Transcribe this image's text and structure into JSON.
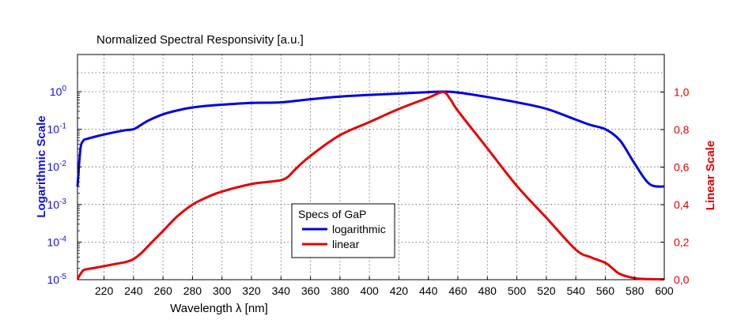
{
  "chart_data": {
    "type": "line",
    "title": "Normalized Spectral Responsivity [a.u.]",
    "xlabel": "Wavelength λ [nm]",
    "ylabel_left": "Logarithmic Scale",
    "ylabel_right": "Linear Scale",
    "xlim": [
      202,
      600
    ],
    "x_ticks": [
      220,
      240,
      260,
      280,
      300,
      320,
      340,
      360,
      380,
      400,
      420,
      440,
      460,
      480,
      500,
      520,
      540,
      560,
      580,
      600
    ],
    "y_left_scale": "log",
    "y_left_lim": [
      1e-05,
      10
    ],
    "y_left_ticks": [
      {
        "base": "10",
        "exp": "0"
      },
      {
        "base": "10",
        "exp": "-1"
      },
      {
        "base": "10",
        "exp": "-2"
      },
      {
        "base": "10",
        "exp": "-3"
      },
      {
        "base": "10",
        "exp": "-4"
      },
      {
        "base": "10",
        "exp": "-5"
      }
    ],
    "y_right_lim": [
      0,
      1.2
    ],
    "y_right_ticks": [
      "1,0",
      "0,8",
      "0,6",
      "0,4",
      "0,2",
      "0,0"
    ],
    "grid": true,
    "legend": {
      "title": "Specs of GaP",
      "placement": "center-bottom"
    },
    "colors": {
      "logarithmic": "#0000e6",
      "linear": "#e60000"
    },
    "series": [
      {
        "name": "logarithmic",
        "axis": "left",
        "x": [
          202,
          204,
          206,
          208,
          215,
          225,
          235,
          240,
          245,
          250,
          260,
          270,
          280,
          290,
          300,
          320,
          340,
          360,
          380,
          400,
          420,
          440,
          450,
          460,
          480,
          500,
          520,
          540,
          550,
          560,
          570,
          580,
          590,
          600
        ],
        "y": [
          0.003,
          0.03,
          0.05,
          0.055,
          0.065,
          0.08,
          0.095,
          0.1,
          0.13,
          0.17,
          0.25,
          0.32,
          0.38,
          0.42,
          0.45,
          0.5,
          0.52,
          0.63,
          0.74,
          0.82,
          0.89,
          0.97,
          1.0,
          0.95,
          0.72,
          0.52,
          0.35,
          0.18,
          0.13,
          0.1,
          0.05,
          0.012,
          0.0035,
          0.003
        ]
      },
      {
        "name": "linear",
        "axis": "right",
        "x": [
          202,
          204,
          206,
          208,
          215,
          225,
          235,
          240,
          245,
          250,
          260,
          270,
          280,
          290,
          300,
          320,
          330,
          340,
          345,
          350,
          360,
          380,
          400,
          420,
          440,
          450,
          455,
          460,
          480,
          500,
          520,
          540,
          550,
          560,
          565,
          570,
          580,
          590,
          600
        ],
        "y": [
          0.003,
          0.03,
          0.05,
          0.055,
          0.065,
          0.08,
          0.095,
          0.11,
          0.14,
          0.18,
          0.26,
          0.34,
          0.4,
          0.44,
          0.47,
          0.51,
          0.52,
          0.53,
          0.55,
          0.59,
          0.66,
          0.77,
          0.84,
          0.91,
          0.97,
          1.0,
          0.96,
          0.9,
          0.7,
          0.5,
          0.33,
          0.16,
          0.12,
          0.09,
          0.06,
          0.03,
          0.008,
          0.003,
          0.002
        ]
      }
    ]
  }
}
